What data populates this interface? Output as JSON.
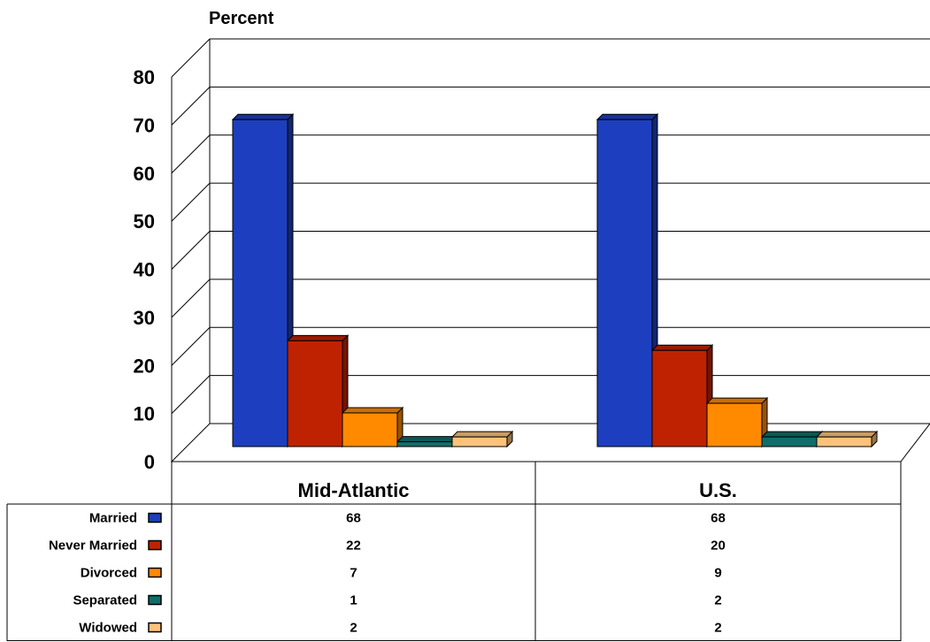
{
  "chart_data": {
    "type": "bar",
    "ylabel": "Percent",
    "ylim": [
      0,
      80
    ],
    "yticks": [
      "0",
      "10",
      "20",
      "30",
      "40",
      "50",
      "60",
      "70",
      "80"
    ],
    "grid": true,
    "categories": [
      "Mid-Atlantic",
      "U.S."
    ],
    "series": [
      {
        "name": "Married",
        "color": "#1d3fbf",
        "values": [
          68,
          68
        ]
      },
      {
        "name": "Never Married",
        "color": "#bf2200",
        "values": [
          22,
          20
        ]
      },
      {
        "name": "Divorced",
        "color": "#ff8a00",
        "values": [
          7,
          9
        ]
      },
      {
        "name": "Separated",
        "color": "#0f6e6a",
        "values": [
          1,
          2
        ]
      },
      {
        "name": "Widowed",
        "color": "#ffc27a",
        "values": [
          2,
          2
        ]
      }
    ],
    "table_cells": [
      [
        "68",
        "68"
      ],
      [
        "22",
        "20"
      ],
      [
        "7",
        "9"
      ],
      [
        "1",
        "2"
      ],
      [
        "2",
        "2"
      ]
    ]
  }
}
